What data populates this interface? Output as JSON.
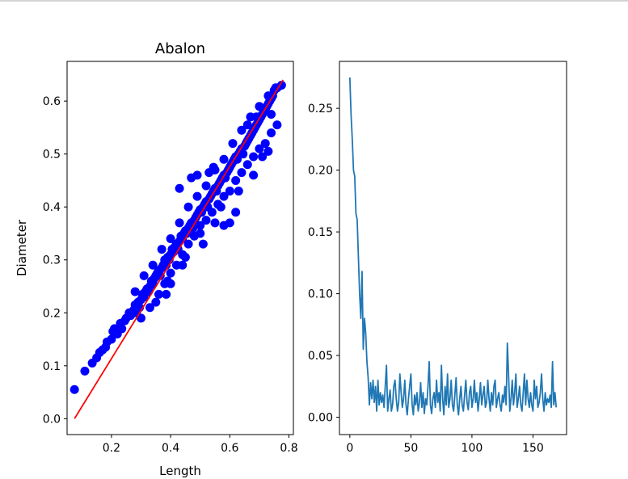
{
  "chart_data": [
    {
      "type": "scatter",
      "title": "Abalon",
      "xlabel": "Length",
      "ylabel": "Diameter",
      "xlim": [
        0.05,
        0.815
      ],
      "ylim": [
        -0.03,
        0.675
      ],
      "xticks": [
        "0.2",
        "0.4",
        "0.6",
        "0.8"
      ],
      "xtick_values": [
        0.2,
        0.4,
        0.6,
        0.8
      ],
      "yticks": [
        "0.0",
        "0.1",
        "0.2",
        "0.3",
        "0.4",
        "0.5",
        "0.6"
      ],
      "ytick_values": [
        0.0,
        0.1,
        0.2,
        0.3,
        0.4,
        0.5,
        0.6
      ],
      "grid": false,
      "series": [
        {
          "kind": "scatter",
          "color": "#0000ff",
          "points": [
            [
              0.075,
              0.055
            ],
            [
              0.11,
              0.09
            ],
            [
              0.135,
              0.105
            ],
            [
              0.15,
              0.115
            ],
            [
              0.16,
              0.125
            ],
            [
              0.17,
              0.13
            ],
            [
              0.18,
              0.135
            ],
            [
              0.185,
              0.145
            ],
            [
              0.2,
              0.15
            ],
            [
              0.205,
              0.165
            ],
            [
              0.21,
              0.17
            ],
            [
              0.22,
              0.16
            ],
            [
              0.23,
              0.18
            ],
            [
              0.235,
              0.17
            ],
            [
              0.245,
              0.185
            ],
            [
              0.25,
              0.19
            ],
            [
              0.26,
              0.2
            ],
            [
              0.265,
              0.195
            ],
            [
              0.275,
              0.205
            ],
            [
              0.28,
              0.215
            ],
            [
              0.285,
              0.2
            ],
            [
              0.29,
              0.22
            ],
            [
              0.295,
              0.21
            ],
            [
              0.3,
              0.225
            ],
            [
              0.305,
              0.235
            ],
            [
              0.31,
              0.23
            ],
            [
              0.315,
              0.24
            ],
            [
              0.32,
              0.245
            ],
            [
              0.325,
              0.24
            ],
            [
              0.33,
              0.25
            ],
            [
              0.335,
              0.26
            ],
            [
              0.34,
              0.255
            ],
            [
              0.345,
              0.265
            ],
            [
              0.35,
              0.27
            ],
            [
              0.355,
              0.275
            ],
            [
              0.36,
              0.28
            ],
            [
              0.365,
              0.27
            ],
            [
              0.37,
              0.285
            ],
            [
              0.375,
              0.29
            ],
            [
              0.38,
              0.3
            ],
            [
              0.385,
              0.29
            ],
            [
              0.39,
              0.305
            ],
            [
              0.395,
              0.3
            ],
            [
              0.4,
              0.31
            ],
            [
              0.405,
              0.32
            ],
            [
              0.41,
              0.315
            ],
            [
              0.415,
              0.325
            ],
            [
              0.42,
              0.33
            ],
            [
              0.425,
              0.32
            ],
            [
              0.43,
              0.335
            ],
            [
              0.435,
              0.345
            ],
            [
              0.44,
              0.34
            ],
            [
              0.445,
              0.35
            ],
            [
              0.45,
              0.355
            ],
            [
              0.455,
              0.35
            ],
            [
              0.46,
              0.36
            ],
            [
              0.465,
              0.365
            ],
            [
              0.47,
              0.37
            ],
            [
              0.475,
              0.36
            ],
            [
              0.48,
              0.375
            ],
            [
              0.485,
              0.38
            ],
            [
              0.49,
              0.385
            ],
            [
              0.495,
              0.39
            ],
            [
              0.5,
              0.395
            ],
            [
              0.505,
              0.39
            ],
            [
              0.51,
              0.4
            ],
            [
              0.515,
              0.405
            ],
            [
              0.52,
              0.41
            ],
            [
              0.525,
              0.4
            ],
            [
              0.53,
              0.415
            ],
            [
              0.535,
              0.42
            ],
            [
              0.54,
              0.425
            ],
            [
              0.545,
              0.43
            ],
            [
              0.55,
              0.435
            ],
            [
              0.555,
              0.43
            ],
            [
              0.56,
              0.44
            ],
            [
              0.565,
              0.445
            ],
            [
              0.57,
              0.45
            ],
            [
              0.575,
              0.455
            ],
            [
              0.58,
              0.46
            ],
            [
              0.585,
              0.455
            ],
            [
              0.59,
              0.465
            ],
            [
              0.595,
              0.47
            ],
            [
              0.6,
              0.475
            ],
            [
              0.605,
              0.48
            ],
            [
              0.61,
              0.485
            ],
            [
              0.615,
              0.49
            ],
            [
              0.62,
              0.495
            ],
            [
              0.625,
              0.49
            ],
            [
              0.63,
              0.5
            ],
            [
              0.635,
              0.505
            ],
            [
              0.64,
              0.51
            ],
            [
              0.645,
              0.5
            ],
            [
              0.65,
              0.515
            ],
            [
              0.655,
              0.52
            ],
            [
              0.66,
              0.525
            ],
            [
              0.665,
              0.53
            ],
            [
              0.67,
              0.535
            ],
            [
              0.675,
              0.54
            ],
            [
              0.68,
              0.545
            ],
            [
              0.685,
              0.55
            ],
            [
              0.69,
              0.555
            ],
            [
              0.695,
              0.56
            ],
            [
              0.7,
              0.565
            ],
            [
              0.705,
              0.57
            ],
            [
              0.71,
              0.575
            ],
            [
              0.715,
              0.58
            ],
            [
              0.72,
              0.585
            ],
            [
              0.725,
              0.59
            ],
            [
              0.73,
              0.595
            ],
            [
              0.735,
              0.6
            ],
            [
              0.74,
              0.605
            ],
            [
              0.745,
              0.61
            ],
            [
              0.75,
              0.62
            ],
            [
              0.76,
              0.625
            ],
            [
              0.775,
              0.63
            ],
            [
              0.3,
              0.19
            ],
            [
              0.33,
              0.21
            ],
            [
              0.36,
              0.235
            ],
            [
              0.38,
              0.255
            ],
            [
              0.4,
              0.275
            ],
            [
              0.42,
              0.29
            ],
            [
              0.44,
              0.31
            ],
            [
              0.46,
              0.33
            ],
            [
              0.48,
              0.345
            ],
            [
              0.5,
              0.365
            ],
            [
              0.52,
              0.375
            ],
            [
              0.54,
              0.39
            ],
            [
              0.56,
              0.405
            ],
            [
              0.58,
              0.42
            ],
            [
              0.6,
              0.43
            ],
            [
              0.62,
              0.45
            ],
            [
              0.64,
              0.465
            ],
            [
              0.66,
              0.48
            ],
            [
              0.68,
              0.495
            ],
            [
              0.7,
              0.51
            ],
            [
              0.72,
              0.52
            ],
            [
              0.74,
              0.54
            ],
            [
              0.76,
              0.555
            ],
            [
              0.28,
              0.24
            ],
            [
              0.31,
              0.27
            ],
            [
              0.34,
              0.29
            ],
            [
              0.37,
              0.32
            ],
            [
              0.4,
              0.34
            ],
            [
              0.43,
              0.37
            ],
            [
              0.46,
              0.4
            ],
            [
              0.49,
              0.42
            ],
            [
              0.52,
              0.44
            ],
            [
              0.55,
              0.47
            ],
            [
              0.58,
              0.49
            ],
            [
              0.61,
              0.52
            ],
            [
              0.64,
              0.545
            ],
            [
              0.67,
              0.57
            ],
            [
              0.7,
              0.59
            ],
            [
              0.73,
              0.61
            ],
            [
              0.755,
              0.625
            ],
            [
              0.49,
              0.46
            ],
            [
              0.43,
              0.435
            ],
            [
              0.53,
              0.465
            ],
            [
              0.545,
              0.475
            ],
            [
              0.385,
              0.235
            ],
            [
              0.4,
              0.255
            ],
            [
              0.58,
              0.365
            ],
            [
              0.62,
              0.39
            ],
            [
              0.71,
              0.495
            ],
            [
              0.73,
              0.505
            ],
            [
              0.6,
              0.37
            ],
            [
              0.47,
              0.455
            ],
            [
              0.66,
              0.555
            ],
            [
              0.69,
              0.57
            ],
            [
              0.5,
              0.35
            ],
            [
              0.55,
              0.37
            ],
            [
              0.45,
              0.305
            ],
            [
              0.35,
              0.22
            ],
            [
              0.39,
              0.26
            ],
            [
              0.44,
              0.29
            ],
            [
              0.51,
              0.33
            ],
            [
              0.57,
              0.4
            ],
            [
              0.63,
              0.43
            ],
            [
              0.68,
              0.46
            ],
            [
              0.74,
              0.575
            ]
          ]
        },
        {
          "kind": "line",
          "color": "#ff0000",
          "points": [
            [
              0.075,
              0.0
            ],
            [
              0.78,
              0.64
            ]
          ]
        }
      ]
    },
    {
      "type": "line",
      "title": "",
      "xlabel": "",
      "ylabel": "",
      "xlim": [
        -8.5,
        177.5
      ],
      "ylim": [
        -0.014,
        0.288
      ],
      "xticks": [
        "0",
        "50",
        "100",
        "150"
      ],
      "xtick_values": [
        0,
        50,
        100,
        150
      ],
      "yticks": [
        "0.00",
        "0.05",
        "0.10",
        "0.15",
        "0.20",
        "0.25"
      ],
      "ytick_values": [
        0.0,
        0.05,
        0.1,
        0.15,
        0.2,
        0.25
      ],
      "grid": false,
      "series": [
        {
          "color": "#1f77b4",
          "x_start": 0,
          "values": [
            0.275,
            0.245,
            0.225,
            0.2,
            0.195,
            0.165,
            0.16,
            0.13,
            0.1,
            0.08,
            0.118,
            0.055,
            0.08,
            0.068,
            0.045,
            0.032,
            0.01,
            0.028,
            0.015,
            0.03,
            0.012,
            0.025,
            0.005,
            0.03,
            0.01,
            0.02,
            0.012,
            0.018,
            0.008,
            0.025,
            0.042,
            0.005,
            0.015,
            0.022,
            0.005,
            0.01,
            0.025,
            0.03,
            0.015,
            0.005,
            0.012,
            0.035,
            0.02,
            0.008,
            0.015,
            0.03,
            0.01,
            0.002,
            0.015,
            0.025,
            0.035,
            0.01,
            0.002,
            0.018,
            0.01,
            0.02,
            0.005,
            0.012,
            0.028,
            0.008,
            0.02,
            0.003,
            0.015,
            0.01,
            0.025,
            0.045,
            0.01,
            0.003,
            0.015,
            0.02,
            0.008,
            0.03,
            0.012,
            0.02,
            0.005,
            0.042,
            0.015,
            0.002,
            0.025,
            0.01,
            0.035,
            0.008,
            0.015,
            0.03,
            0.01,
            0.005,
            0.018,
            0.032,
            0.01,
            0.002,
            0.015,
            0.025,
            0.01,
            0.005,
            0.018,
            0.03,
            0.012,
            0.006,
            0.02,
            0.025,
            0.008,
            0.015,
            0.03,
            0.012,
            0.02,
            0.005,
            0.015,
            0.028,
            0.01,
            0.018,
            0.025,
            0.008,
            0.012,
            0.03,
            0.015,
            0.005,
            0.02,
            0.01,
            0.025,
            0.03,
            0.008,
            0.015,
            0.02,
            0.01,
            0.005,
            0.018,
            0.012,
            0.025,
            0.01,
            0.06,
            0.035,
            0.005,
            0.015,
            0.03,
            0.01,
            0.02,
            0.035,
            0.008,
            0.015,
            0.025,
            0.01,
            0.005,
            0.02,
            0.035,
            0.01,
            0.03,
            0.015,
            0.008,
            0.02,
            0.01,
            0.005,
            0.03,
            0.015,
            0.025,
            0.008,
            0.012,
            0.02,
            0.035,
            0.015,
            0.005,
            0.02,
            0.01,
            0.015,
            0.012,
            0.018,
            0.008,
            0.045,
            0.01,
            0.02,
            0.008
          ]
        }
      ]
    }
  ]
}
